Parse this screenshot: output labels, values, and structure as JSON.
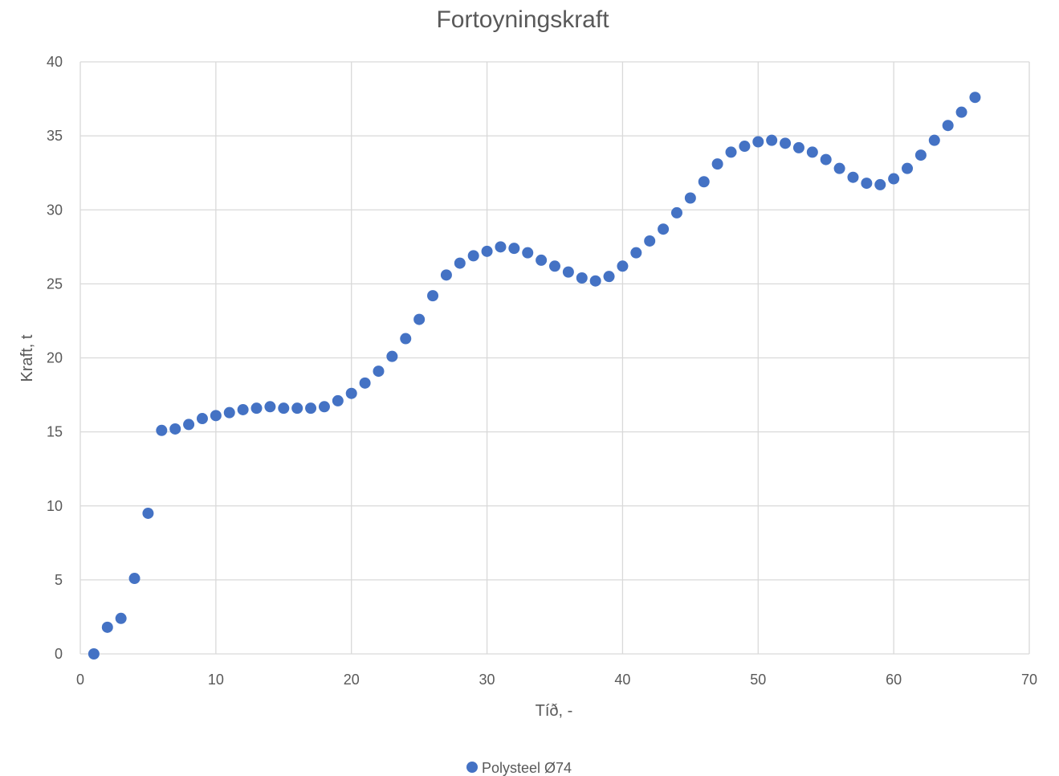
{
  "chart_data": {
    "type": "scatter",
    "title": "Fortoyningskraft",
    "xlabel": "Tíð, -",
    "ylabel": "Kraft, t",
    "xlim": [
      0,
      70
    ],
    "ylim": [
      0,
      40
    ],
    "xticks": [
      0,
      10,
      20,
      30,
      40,
      50,
      60,
      70
    ],
    "yticks": [
      0,
      5,
      10,
      15,
      20,
      25,
      30,
      35,
      40
    ],
    "grid": true,
    "legend_position": "bottom",
    "series": [
      {
        "name": "Polysteel Ø74",
        "color": "#4472c4",
        "points": [
          [
            1,
            0.0
          ],
          [
            2,
            1.8
          ],
          [
            3,
            2.4
          ],
          [
            4,
            5.1
          ],
          [
            5,
            9.5
          ],
          [
            6,
            15.1
          ],
          [
            7,
            15.2
          ],
          [
            8,
            15.5
          ],
          [
            9,
            15.9
          ],
          [
            10,
            16.1
          ],
          [
            11,
            16.3
          ],
          [
            12,
            16.5
          ],
          [
            13,
            16.6
          ],
          [
            14,
            16.7
          ],
          [
            15,
            16.6
          ],
          [
            16,
            16.6
          ],
          [
            17,
            16.6
          ],
          [
            18,
            16.7
          ],
          [
            19,
            17.1
          ],
          [
            20,
            17.6
          ],
          [
            21,
            18.3
          ],
          [
            22,
            19.1
          ],
          [
            23,
            20.1
          ],
          [
            24,
            21.3
          ],
          [
            25,
            22.6
          ],
          [
            26,
            24.2
          ],
          [
            27,
            25.6
          ],
          [
            28,
            26.4
          ],
          [
            29,
            26.9
          ],
          [
            30,
            27.2
          ],
          [
            31,
            27.5
          ],
          [
            32,
            27.4
          ],
          [
            33,
            27.1
          ],
          [
            34,
            26.6
          ],
          [
            35,
            26.2
          ],
          [
            36,
            25.8
          ],
          [
            37,
            25.4
          ],
          [
            38,
            25.2
          ],
          [
            39,
            25.5
          ],
          [
            40,
            26.2
          ],
          [
            41,
            27.1
          ],
          [
            42,
            27.9
          ],
          [
            43,
            28.7
          ],
          [
            44,
            29.8
          ],
          [
            45,
            30.8
          ],
          [
            46,
            31.9
          ],
          [
            47,
            33.1
          ],
          [
            48,
            33.9
          ],
          [
            49,
            34.3
          ],
          [
            50,
            34.6
          ],
          [
            51,
            34.7
          ],
          [
            52,
            34.5
          ],
          [
            53,
            34.2
          ],
          [
            54,
            33.9
          ],
          [
            55,
            33.4
          ],
          [
            56,
            32.8
          ],
          [
            57,
            32.2
          ],
          [
            58,
            31.8
          ],
          [
            59,
            31.7
          ],
          [
            60,
            32.1
          ],
          [
            61,
            32.8
          ],
          [
            62,
            33.7
          ],
          [
            63,
            34.7
          ],
          [
            64,
            35.7
          ],
          [
            65,
            36.6
          ],
          [
            66,
            37.6
          ]
        ]
      }
    ]
  }
}
